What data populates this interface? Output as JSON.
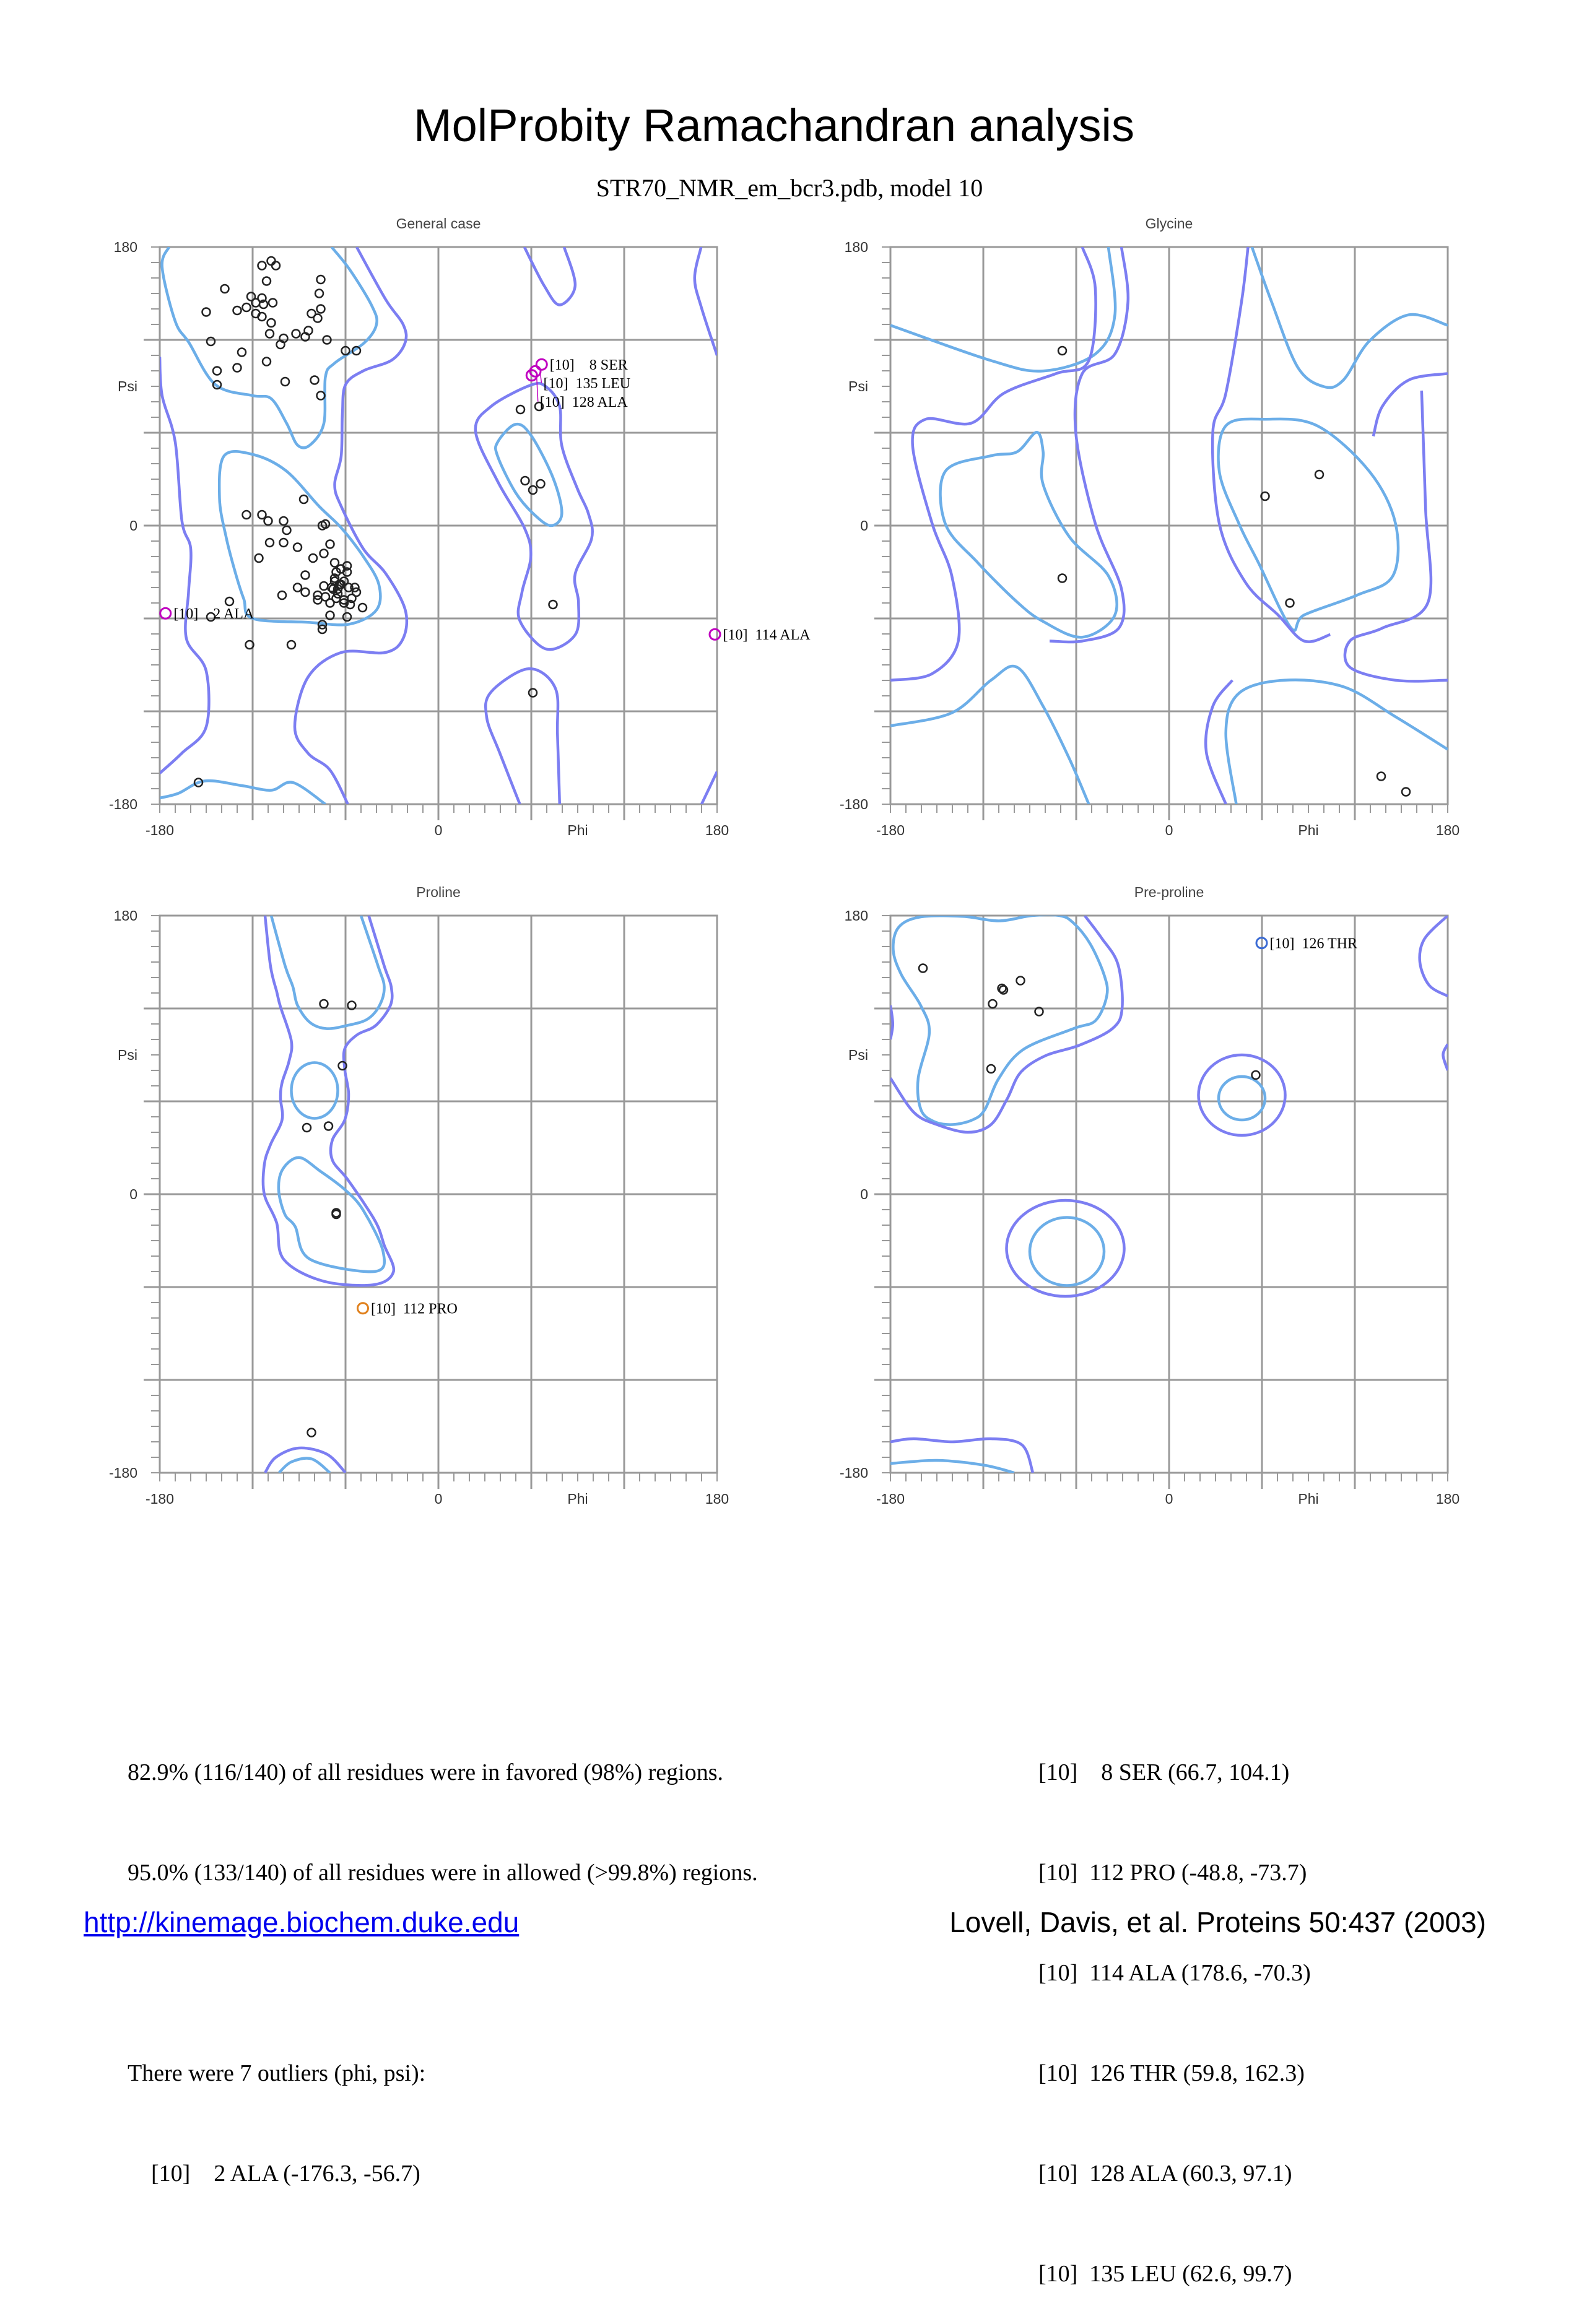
{
  "title": "MolProbity Ramachandran analysis",
  "subtitle": "STR70_NMR_em_bcr3.pdb, model 10",
  "colors": {
    "favored": "#6caee8",
    "allowed": "#7c7ef2",
    "point": "#222222",
    "grid": "#999999"
  },
  "chart_data": [
    {
      "type": "scatter",
      "title": "General case",
      "xlabel": "Phi",
      "ylabel": "Psi",
      "xlim": [
        -180,
        180
      ],
      "ylim": [
        -180,
        180
      ],
      "x_tick_labels": [
        "-180",
        "0",
        "180"
      ],
      "y_tick_labels": [
        "180",
        "0",
        "-180"
      ],
      "grid": true,
      "points": [
        [
          -108,
          171
        ],
        [
          -114,
          168
        ],
        [
          -105,
          168
        ],
        [
          -76,
          159
        ],
        [
          -111,
          158
        ],
        [
          -138,
          153
        ],
        [
          -77,
          150
        ],
        [
          -121,
          148
        ],
        [
          -114,
          147
        ],
        [
          -118,
          144
        ],
        [
          -113,
          143
        ],
        [
          -107,
          144
        ],
        [
          -150,
          138
        ],
        [
          -130,
          139
        ],
        [
          -124,
          141
        ],
        [
          -118,
          137
        ],
        [
          -114,
          135
        ],
        [
          -82,
          137
        ],
        [
          -78,
          134
        ],
        [
          -76,
          140
        ],
        [
          -108,
          131
        ],
        [
          -109,
          124
        ],
        [
          -100,
          121
        ],
        [
          -102,
          117
        ],
        [
          -92,
          124
        ],
        [
          -86,
          122
        ],
        [
          -84,
          126
        ],
        [
          -72,
          120
        ],
        [
          -147,
          119
        ],
        [
          -127,
          112
        ],
        [
          -60,
          113
        ],
        [
          -53,
          113
        ],
        [
          -111,
          106
        ],
        [
          -143,
          100
        ],
        [
          -130,
          102
        ],
        [
          -143,
          91
        ],
        [
          -99,
          93
        ],
        [
          -80,
          94
        ],
        [
          -76,
          84
        ],
        [
          -87,
          17
        ],
        [
          -124,
          7
        ],
        [
          -114,
          7
        ],
        [
          -110,
          3
        ],
        [
          -100,
          3
        ],
        [
          -98,
          -3
        ],
        [
          -75,
          0
        ],
        [
          -73,
          1
        ],
        [
          -109,
          -11
        ],
        [
          -100,
          -11
        ],
        [
          -91,
          -14
        ],
        [
          -70,
          -12
        ],
        [
          -116,
          -21
        ],
        [
          -81,
          -21
        ],
        [
          -74,
          -18
        ],
        [
          -67,
          -24
        ],
        [
          -86,
          -32
        ],
        [
          -59,
          -26
        ],
        [
          -66,
          -30
        ],
        [
          -63,
          -28
        ],
        [
          -59,
          -30
        ],
        [
          -67,
          -34
        ],
        [
          -67,
          -36
        ],
        [
          -61,
          -36
        ],
        [
          -63,
          -38
        ],
        [
          -64,
          -38
        ],
        [
          -68,
          -41
        ],
        [
          -69,
          -40
        ],
        [
          -65,
          -41
        ],
        [
          -58,
          -40
        ],
        [
          -54,
          -40
        ],
        [
          -53,
          -43
        ],
        [
          -74,
          -39
        ],
        [
          -91,
          -40
        ],
        [
          -86,
          -43
        ],
        [
          -101,
          -45
        ],
        [
          -78,
          -45
        ],
        [
          -78,
          -48
        ],
        [
          -73,
          -46
        ],
        [
          -66,
          -47
        ],
        [
          -65,
          -44
        ],
        [
          -61,
          -48
        ],
        [
          -56,
          -47
        ],
        [
          -61,
          -50
        ],
        [
          -57,
          -51
        ],
        [
          -70,
          -50
        ],
        [
          -49,
          -53
        ],
        [
          -70,
          -58
        ],
        [
          -59,
          -59
        ],
        [
          -135,
          -49
        ],
        [
          -147,
          -59
        ],
        [
          -75,
          -64
        ],
        [
          -75,
          -67
        ],
        [
          -122,
          -77
        ],
        [
          -95,
          -77
        ],
        [
          -155,
          -166
        ],
        [
          53,
          75
        ],
        [
          65,
          77
        ],
        [
          56,
          29
        ],
        [
          61,
          23
        ],
        [
          66,
          27
        ],
        [
          74,
          -51
        ],
        [
          61,
          -108
        ]
      ],
      "outliers": [
        {
          "label": "[10]    2 ALA",
          "phi": -176.3,
          "psi": -56.7,
          "color": "#c000c0"
        },
        {
          "label": "[10]    8 SER",
          "phi": 66.7,
          "psi": 104.1,
          "color": "#c000c0"
        },
        {
          "label": "[10]  135 LEU",
          "phi": 62.6,
          "psi": 99.7,
          "color": "#c000c0"
        },
        {
          "label": "[10]  128 ALA",
          "phi": 60.3,
          "psi": 97.1,
          "color": "#c000c0"
        },
        {
          "label": "[10]  114 ALA",
          "phi": 178.6,
          "psi": -70.3,
          "color": "#c000c0"
        }
      ]
    },
    {
      "type": "scatter",
      "title": "Glycine",
      "xlabel": "Phi",
      "ylabel": "Psi",
      "xlim": [
        -180,
        180
      ],
      "ylim": [
        -180,
        180
      ],
      "x_tick_labels": [
        "-180",
        "0",
        "180"
      ],
      "y_tick_labels": [
        "180",
        "0",
        "-180"
      ],
      "grid": true,
      "points": [
        [
          -69,
          113
        ],
        [
          -69,
          -34
        ],
        [
          62,
          19
        ],
        [
          97,
          33
        ],
        [
          78,
          -50
        ],
        [
          137,
          -162
        ],
        [
          153,
          -172
        ]
      ],
      "outliers": []
    },
    {
      "type": "scatter",
      "title": "Proline",
      "xlabel": "Phi",
      "ylabel": "Psi",
      "xlim": [
        -180,
        180
      ],
      "ylim": [
        -180,
        180
      ],
      "x_tick_labels": [
        "-180",
        "0",
        "180"
      ],
      "y_tick_labels": [
        "180",
        "0",
        "-180"
      ],
      "grid": true,
      "points": [
        [
          -74,
          123
        ],
        [
          -56,
          122
        ],
        [
          -62,
          83
        ],
        [
          -85,
          43
        ],
        [
          -71,
          44
        ],
        [
          -66,
          -12
        ],
        [
          -66,
          -13
        ],
        [
          -82,
          -154
        ]
      ],
      "outliers": [
        {
          "label": "[10]  112 PRO",
          "phi": -48.8,
          "psi": -73.7,
          "color": "#e0801c"
        }
      ]
    },
    {
      "type": "scatter",
      "title": "Pre-proline",
      "xlabel": "Phi",
      "ylabel": "Psi",
      "xlim": [
        -180,
        180
      ],
      "ylim": [
        -180,
        180
      ],
      "x_tick_labels": [
        "-180",
        "0",
        "180"
      ],
      "y_tick_labels": [
        "180",
        "0",
        "-180"
      ],
      "grid": true,
      "points": [
        [
          -159,
          146
        ],
        [
          -108,
          133
        ],
        [
          -107,
          132
        ],
        [
          -96,
          138
        ],
        [
          -114,
          123
        ],
        [
          -84,
          118
        ],
        [
          -115,
          81
        ],
        [
          56,
          77
        ]
      ],
      "outliers": [
        {
          "label": "[10]  126 THR",
          "phi": 59.8,
          "psi": 162.3,
          "color": "#3a6ad4"
        }
      ]
    }
  ],
  "summary": {
    "favored": "82.9% (116/140) of all residues were in favored (98%) regions.",
    "allowed": "95.0% (133/140) of all residues were in allowed (>99.8%) regions.",
    "outlier_header": "There were 7 outliers (phi, psi):",
    "outliers_left": [
      "    [10]    2 ALA (-176.3, -56.7)"
    ],
    "outliers_right": [
      "[10]    8 SER (66.7, 104.1)",
      "[10]  112 PRO (-48.8, -73.7)",
      "[10]  114 ALA (178.6, -70.3)",
      "[10]  126 THR (59.8, 162.3)",
      "[10]  128 ALA (60.3, 97.1)",
      "[10]  135 LEU (62.6, 99.7)"
    ]
  },
  "footer": {
    "link": "http://kinemage.biochem.duke.edu",
    "citation": "Lovell, Davis, et al. Proteins 50:437 (2003)"
  }
}
